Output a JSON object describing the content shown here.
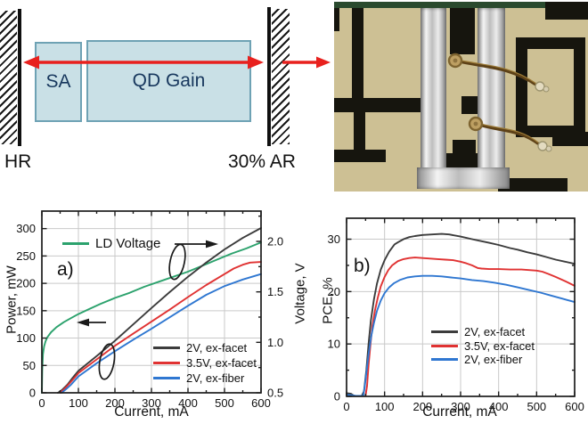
{
  "diagram": {
    "labels": {
      "sa": "SA",
      "gain": "QD Gain",
      "left_mirror": "HR",
      "right_mirror": "30% AR"
    },
    "colors": {
      "box_fill": "#c9e0e6",
      "box_border": "#6ea2b4",
      "box_text": "#17375d",
      "beam_arrow": "#e8211e",
      "mirror": "#101010"
    }
  },
  "photo": {
    "colors": {
      "substrate": "#cdc094",
      "metal_trace": "#16150e",
      "solder_strip": "#e9e9e9",
      "bond_wire": "#5d4118",
      "top_edge": "#2a4a2e"
    }
  },
  "chart_data": [
    {
      "type": "line",
      "panel_label": "a)",
      "xlabel": "Current, mA",
      "ylabel": "Power, mW",
      "y2label": "Voltage, V",
      "xlim": [
        0,
        600
      ],
      "ylim": [
        0,
        332
      ],
      "y2lim": [
        0.5,
        2.3
      ],
      "xticks": [
        0,
        100,
        200,
        300,
        400,
        500,
        600
      ],
      "yticks": [
        0,
        50,
        100,
        150,
        200,
        250,
        300
      ],
      "y2ticks": [
        0.5,
        1.0,
        1.5,
        2.0
      ],
      "xminor": 50,
      "y2minor": 0.25,
      "grid": true,
      "legend_position": "lower right",
      "series": [
        {
          "name": "LD Voltage",
          "color": "#2ca26d",
          "axis": "right",
          "points": [
            [
              0,
              0.5
            ],
            [
              1,
              0.72
            ],
            [
              3,
              0.88
            ],
            [
              6,
              0.96
            ],
            [
              10,
              1.01
            ],
            [
              15,
              1.05
            ],
            [
              25,
              1.1
            ],
            [
              40,
              1.15
            ],
            [
              60,
              1.2
            ],
            [
              80,
              1.24
            ],
            [
              100,
              1.28
            ],
            [
              130,
              1.33
            ],
            [
              160,
              1.38
            ],
            [
              200,
              1.44
            ],
            [
              240,
              1.49
            ],
            [
              280,
              1.55
            ],
            [
              320,
              1.6
            ],
            [
              360,
              1.65
            ],
            [
              400,
              1.7
            ],
            [
              440,
              1.76
            ],
            [
              480,
              1.82
            ],
            [
              520,
              1.88
            ],
            [
              560,
              1.93
            ],
            [
              600,
              1.99
            ]
          ]
        },
        {
          "name": "2V, ex-facet",
          "color": "#3c3c3c",
          "axis": "left",
          "points": [
            [
              44,
              0
            ],
            [
              55,
              5
            ],
            [
              70,
              15
            ],
            [
              85,
              28
            ],
            [
              100,
              40
            ],
            [
              150,
              67
            ],
            [
              200,
              95
            ],
            [
              250,
              125
            ],
            [
              300,
              155
            ],
            [
              350,
              184
            ],
            [
              400,
              212
            ],
            [
              450,
              238
            ],
            [
              500,
              262
            ],
            [
              550,
              283
            ],
            [
              600,
              301
            ]
          ]
        },
        {
          "name": "3.5V, ex-facet",
          "color": "#e03232",
          "axis": "left",
          "points": [
            [
              50,
              0
            ],
            [
              60,
              6
            ],
            [
              75,
              17
            ],
            [
              90,
              28
            ],
            [
              100,
              36
            ],
            [
              150,
              61
            ],
            [
              200,
              86
            ],
            [
              250,
              108
            ],
            [
              300,
              130
            ],
            [
              350,
              152
            ],
            [
              400,
              175
            ],
            [
              450,
              197
            ],
            [
              500,
              217
            ],
            [
              525,
              227
            ],
            [
              550,
              234
            ],
            [
              570,
              238
            ],
            [
              600,
              239
            ]
          ]
        },
        {
          "name": "2V, ex-fiber",
          "color": "#2f77d1",
          "axis": "left",
          "points": [
            [
              54,
              0
            ],
            [
              65,
              6
            ],
            [
              80,
              15
            ],
            [
              100,
              30
            ],
            [
              150,
              54
            ],
            [
              200,
              76
            ],
            [
              250,
              97
            ],
            [
              300,
              117
            ],
            [
              350,
              138
            ],
            [
              400,
              159
            ],
            [
              450,
              179
            ],
            [
              500,
              195
            ],
            [
              550,
              207
            ],
            [
              600,
              217
            ]
          ]
        }
      ]
    },
    {
      "type": "line",
      "panel_label": "b)",
      "xlabel": "Current, mA",
      "ylabel": "PCE, %",
      "xlim": [
        0,
        600
      ],
      "ylim": [
        0,
        34
      ],
      "xticks": [
        0,
        100,
        200,
        300,
        400,
        500,
        600
      ],
      "yticks": [
        0,
        10,
        20,
        30
      ],
      "xminor": 50,
      "yminor": 5,
      "grid": true,
      "legend_position": "center right",
      "series": [
        {
          "name": "2V, ex-facet",
          "color": "#3c3c3c",
          "axis": "left",
          "points": [
            [
              0,
              0.6
            ],
            [
              12,
              0.5
            ],
            [
              20,
              0.1
            ],
            [
              40,
              0.1
            ],
            [
              46,
              1
            ],
            [
              52,
              5
            ],
            [
              58,
              10
            ],
            [
              64,
              14.5
            ],
            [
              72,
              18.5
            ],
            [
              80,
              21.5
            ],
            [
              90,
              24.2
            ],
            [
              100,
              26
            ],
            [
              112,
              27.6
            ],
            [
              120,
              28.4
            ],
            [
              126,
              29
            ],
            [
              135,
              29.4
            ],
            [
              150,
              30
            ],
            [
              165,
              30.4
            ],
            [
              180,
              30.6
            ],
            [
              200,
              30.8
            ],
            [
              225,
              30.9
            ],
            [
              250,
              31
            ],
            [
              270,
              30.9
            ],
            [
              300,
              30.5
            ],
            [
              330,
              30
            ],
            [
              350,
              29.7
            ],
            [
              375,
              29.3
            ],
            [
              400,
              28.9
            ],
            [
              430,
              28.3
            ],
            [
              450,
              28
            ],
            [
              475,
              27.5
            ],
            [
              500,
              27.1
            ],
            [
              525,
              26.6
            ],
            [
              550,
              26.1
            ],
            [
              575,
              25.7
            ],
            [
              600,
              25.3
            ]
          ]
        },
        {
          "name": "3.5V, ex-facet",
          "color": "#e03232",
          "axis": "left",
          "points": [
            [
              50,
              0.1
            ],
            [
              54,
              2
            ],
            [
              58,
              6
            ],
            [
              63,
              10
            ],
            [
              68,
              13.5
            ],
            [
              75,
              16.5
            ],
            [
              82,
              18.8
            ],
            [
              90,
              21
            ],
            [
              100,
              22.8
            ],
            [
              110,
              24.1
            ],
            [
              120,
              25
            ],
            [
              135,
              25.8
            ],
            [
              150,
              26.2
            ],
            [
              165,
              26.4
            ],
            [
              180,
              26.5
            ],
            [
              200,
              26.4
            ],
            [
              220,
              26.3
            ],
            [
              240,
              26.2
            ],
            [
              260,
              26.1
            ],
            [
              280,
              26
            ],
            [
              300,
              25.7
            ],
            [
              315,
              25.4
            ],
            [
              330,
              25
            ],
            [
              345,
              24.5
            ],
            [
              355,
              24.4
            ],
            [
              375,
              24.3
            ],
            [
              400,
              24.3
            ],
            [
              430,
              24.2
            ],
            [
              460,
              24.2
            ],
            [
              480,
              24.1
            ],
            [
              500,
              24
            ],
            [
              515,
              23.8
            ],
            [
              530,
              23.4
            ],
            [
              550,
              22.8
            ],
            [
              575,
              22
            ],
            [
              600,
              21.1
            ]
          ]
        },
        {
          "name": "2V, ex-fiber",
          "color": "#2f77d1",
          "axis": "left",
          "points": [
            [
              0,
              0.3
            ],
            [
              15,
              0.2
            ],
            [
              25,
              0.1
            ],
            [
              44,
              0.1
            ],
            [
              48,
              2
            ],
            [
              53,
              5
            ],
            [
              58,
              8
            ],
            [
              65,
              11.5
            ],
            [
              72,
              14
            ],
            [
              80,
              16.3
            ],
            [
              90,
              18.3
            ],
            [
              100,
              19.7
            ],
            [
              112,
              20.8
            ],
            [
              125,
              21.6
            ],
            [
              140,
              22.2
            ],
            [
              160,
              22.7
            ],
            [
              180,
              22.9
            ],
            [
              200,
              23
            ],
            [
              225,
              23
            ],
            [
              250,
              22.9
            ],
            [
              275,
              22.7
            ],
            [
              300,
              22.5
            ],
            [
              330,
              22.2
            ],
            [
              360,
              22
            ],
            [
              390,
              21.7
            ],
            [
              420,
              21.3
            ],
            [
              450,
              20.8
            ],
            [
              480,
              20.3
            ],
            [
              510,
              19.8
            ],
            [
              540,
              19.2
            ],
            [
              570,
              18.6
            ],
            [
              600,
              18
            ]
          ]
        }
      ]
    }
  ]
}
